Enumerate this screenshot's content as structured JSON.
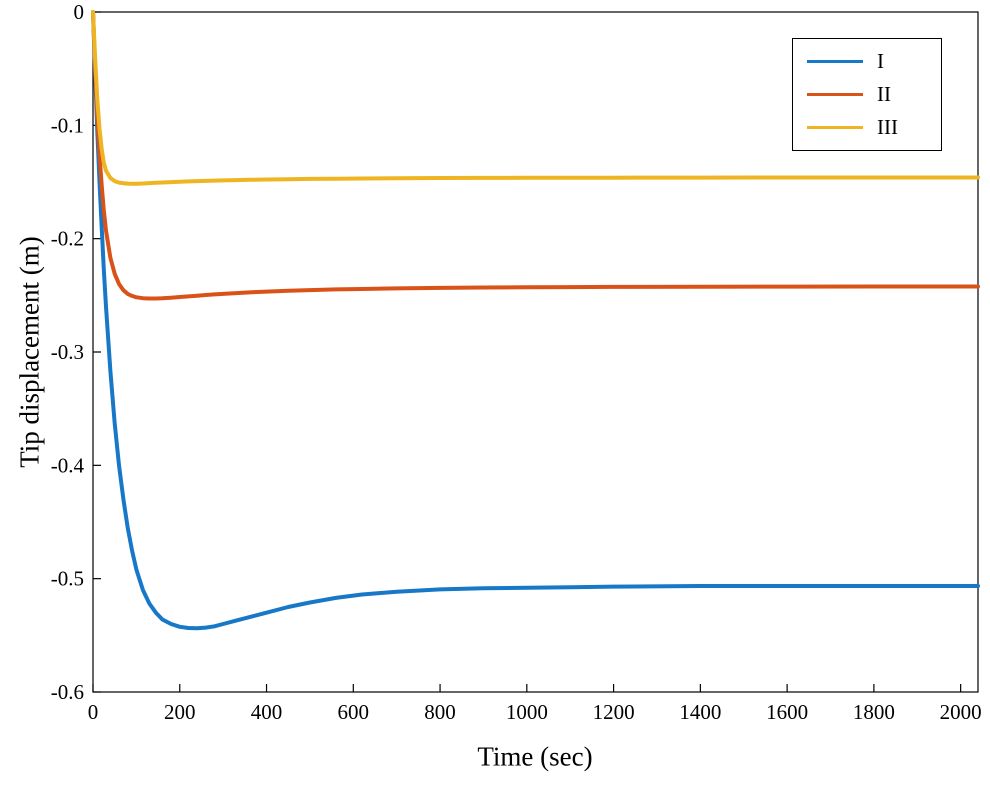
{
  "figure": {
    "background": "#ffffff"
  },
  "chart_data": {
    "type": "line",
    "title": "",
    "xlabel": "Time (sec)",
    "ylabel": "Tip displacement (m)",
    "xlim": [
      0,
      2040
    ],
    "ylim": [
      -0.6,
      0
    ],
    "grid": false,
    "line_width": 4,
    "xticks": [
      0,
      200,
      400,
      600,
      800,
      1000,
      1200,
      1400,
      1600,
      1800,
      2000
    ],
    "xtick_labels": [
      "0",
      "200",
      "400",
      "600",
      "800",
      "1000",
      "1200",
      "1400",
      "1600",
      "1800",
      "2000"
    ],
    "yticks": [
      0,
      -0.1,
      -0.2,
      -0.3,
      -0.4,
      -0.5,
      -0.6
    ],
    "ytick_labels": [
      "0",
      "-0.1",
      "-0.2",
      "-0.3",
      "-0.4",
      "-0.5",
      "-0.6"
    ],
    "legend": {
      "position": "top-right",
      "entries": [
        "I",
        "II",
        "III"
      ]
    },
    "series": [
      {
        "name": "I",
        "color": "#1878c8",
        "x": [
          0,
          5,
          10,
          15,
          20,
          25,
          30,
          40,
          50,
          60,
          70,
          80,
          90,
          100,
          115,
          130,
          145,
          160,
          180,
          200,
          220,
          240,
          260,
          280,
          300,
          330,
          360,
          400,
          450,
          500,
          560,
          620,
          700,
          800,
          900,
          1000,
          1100,
          1200,
          1400,
          1600,
          1800,
          2040
        ],
        "y": [
          0,
          -0.055,
          -0.105,
          -0.15,
          -0.19,
          -0.227,
          -0.26,
          -0.317,
          -0.363,
          -0.4,
          -0.43,
          -0.455,
          -0.475,
          -0.492,
          -0.51,
          -0.522,
          -0.53,
          -0.536,
          -0.54,
          -0.5425,
          -0.5435,
          -0.5438,
          -0.5432,
          -0.542,
          -0.54,
          -0.537,
          -0.534,
          -0.53,
          -0.525,
          -0.521,
          -0.517,
          -0.514,
          -0.5115,
          -0.5095,
          -0.5085,
          -0.508,
          -0.5075,
          -0.507,
          -0.5065,
          -0.5065,
          -0.5065,
          -0.5065
        ]
      },
      {
        "name": "II",
        "color": "#d95319",
        "x": [
          0,
          5,
          10,
          15,
          20,
          25,
          30,
          40,
          50,
          60,
          70,
          80,
          90,
          100,
          115,
          130,
          145,
          160,
          180,
          200,
          220,
          240,
          260,
          280,
          300,
          330,
          360,
          400,
          450,
          500,
          560,
          620,
          700,
          800,
          900,
          1000,
          1100,
          1200,
          1400,
          1600,
          1800,
          2040
        ],
        "y": [
          0,
          -0.05,
          -0.092,
          -0.126,
          -0.153,
          -0.175,
          -0.193,
          -0.217,
          -0.231,
          -0.24,
          -0.2455,
          -0.2487,
          -0.2505,
          -0.2517,
          -0.2525,
          -0.2528,
          -0.2528,
          -0.2526,
          -0.2521,
          -0.2515,
          -0.2509,
          -0.2503,
          -0.2497,
          -0.2492,
          -0.2487,
          -0.248,
          -0.2474,
          -0.2467,
          -0.246,
          -0.2454,
          -0.2448,
          -0.2444,
          -0.2439,
          -0.2434,
          -0.2431,
          -0.2429,
          -0.2427,
          -0.2426,
          -0.2424,
          -0.2423,
          -0.2422,
          -0.2422
        ]
      },
      {
        "name": "III",
        "color": "#eeb422",
        "x": [
          0,
          5,
          10,
          15,
          20,
          25,
          30,
          40,
          50,
          60,
          70,
          80,
          90,
          100,
          115,
          130,
          145,
          160,
          180,
          200,
          220,
          240,
          260,
          280,
          300,
          330,
          360,
          400,
          450,
          500,
          560,
          620,
          700,
          800,
          900,
          1000,
          1100,
          1200,
          1400,
          1600,
          1800,
          2040
        ],
        "y": [
          0,
          -0.042,
          -0.077,
          -0.103,
          -0.121,
          -0.133,
          -0.14,
          -0.1465,
          -0.1492,
          -0.1505,
          -0.1511,
          -0.1514,
          -0.1515,
          -0.1515,
          -0.1513,
          -0.151,
          -0.1507,
          -0.1504,
          -0.1501,
          -0.1498,
          -0.1495,
          -0.1492,
          -0.149,
          -0.1488,
          -0.1486,
          -0.1483,
          -0.1481,
          -0.1478,
          -0.1475,
          -0.1473,
          -0.1471,
          -0.1469,
          -0.1467,
          -0.1465,
          -0.1464,
          -0.1463,
          -0.1462,
          -0.1462,
          -0.1461,
          -0.146,
          -0.146,
          -0.146
        ]
      }
    ]
  }
}
